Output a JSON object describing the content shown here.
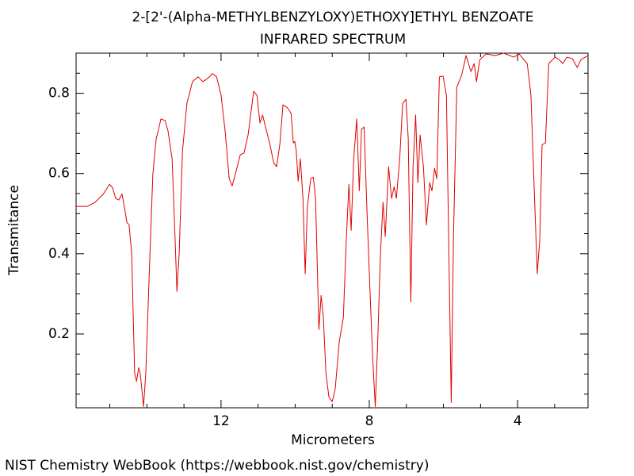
{
  "chart_data": {
    "type": "line",
    "title": "2-[2'-(Alpha-METHYLBENZYLOXY)ETHOXY]ETHYL BENZOATE",
    "subtitle": "INFRARED SPECTRUM",
    "xlabel": "Micrometers",
    "ylabel": "Transmitance",
    "footer": "NIST Chemistry WebBook (https://webbook.nist.gov/chemistry)",
    "xlim": [
      15.91,
      2.1
    ],
    "ylim": [
      0.016,
      0.9
    ],
    "xticks": [
      12,
      8,
      4
    ],
    "xminor_ticks": [
      15,
      14,
      13,
      11,
      10,
      9,
      7,
      6,
      5,
      3
    ],
    "yticks": [
      0.2,
      0.4,
      0.6,
      0.8
    ],
    "yminor_ticks": [
      0.05,
      0.1,
      0.15,
      0.25,
      0.3,
      0.35,
      0.45,
      0.5,
      0.55,
      0.65,
      0.7,
      0.75,
      0.85
    ],
    "series": [
      {
        "color": "#e00000",
        "x": [
          15.91,
          15.61,
          15.4,
          15.18,
          15.01,
          14.93,
          14.84,
          14.76,
          14.67,
          14.61,
          14.54,
          14.48,
          14.41,
          14.33,
          14.28,
          14.22,
          14.18,
          14.09,
          14.03,
          13.94,
          13.84,
          13.75,
          13.62,
          13.51,
          13.43,
          13.32,
          13.24,
          13.19,
          13.13,
          13.04,
          12.92,
          12.77,
          12.62,
          12.49,
          12.36,
          12.23,
          12.12,
          12.0,
          11.89,
          11.78,
          11.7,
          11.59,
          11.48,
          11.38,
          11.27,
          11.12,
          11.03,
          10.95,
          10.88,
          10.8,
          10.69,
          10.58,
          10.5,
          10.41,
          10.33,
          10.22,
          10.11,
          10.05,
          10.01,
          9.97,
          9.92,
          9.86,
          9.79,
          9.73,
          9.67,
          9.58,
          9.51,
          9.45,
          9.36,
          9.3,
          9.24,
          9.17,
          9.09,
          9.0,
          8.92,
          8.81,
          8.7,
          8.62,
          8.55,
          8.49,
          8.42,
          8.34,
          8.27,
          8.21,
          8.14,
          8.06,
          7.97,
          7.91,
          7.84,
          7.78,
          7.7,
          7.63,
          7.57,
          7.48,
          7.4,
          7.33,
          7.27,
          7.18,
          7.1,
          7.01,
          6.95,
          6.88,
          6.82,
          6.75,
          6.69,
          6.63,
          6.54,
          6.46,
          6.37,
          6.31,
          6.24,
          6.18,
          6.11,
          6.01,
          5.92,
          5.86,
          5.79,
          5.73,
          5.64,
          5.51,
          5.39,
          5.26,
          5.17,
          5.11,
          5.02,
          4.85,
          4.6,
          4.38,
          4.1,
          3.96,
          3.74,
          3.64,
          3.55,
          3.47,
          3.4,
          3.34,
          3.25,
          3.16,
          2.99,
          2.88,
          2.78,
          2.67,
          2.52,
          2.39,
          2.29,
          2.1
        ],
        "values": [
          0.518,
          0.518,
          0.528,
          0.548,
          0.573,
          0.565,
          0.538,
          0.534,
          0.549,
          0.518,
          0.478,
          0.472,
          0.399,
          0.102,
          0.082,
          0.116,
          0.102,
          0.019,
          0.102,
          0.34,
          0.597,
          0.686,
          0.736,
          0.732,
          0.706,
          0.637,
          0.439,
          0.306,
          0.399,
          0.656,
          0.775,
          0.829,
          0.841,
          0.829,
          0.837,
          0.849,
          0.841,
          0.796,
          0.706,
          0.587,
          0.569,
          0.607,
          0.647,
          0.651,
          0.696,
          0.805,
          0.795,
          0.726,
          0.746,
          0.716,
          0.676,
          0.627,
          0.617,
          0.676,
          0.771,
          0.765,
          0.75,
          0.676,
          0.68,
          0.656,
          0.581,
          0.637,
          0.538,
          0.35,
          0.518,
          0.587,
          0.591,
          0.538,
          0.211,
          0.296,
          0.241,
          0.102,
          0.043,
          0.031,
          0.063,
          0.181,
          0.241,
          0.439,
          0.573,
          0.458,
          0.637,
          0.736,
          0.557,
          0.71,
          0.716,
          0.498,
          0.28,
          0.142,
          0.019,
          0.162,
          0.399,
          0.528,
          0.443,
          0.617,
          0.538,
          0.567,
          0.538,
          0.637,
          0.775,
          0.785,
          0.686,
          0.28,
          0.617,
          0.746,
          0.577,
          0.696,
          0.617,
          0.472,
          0.577,
          0.557,
          0.613,
          0.587,
          0.841,
          0.843,
          0.795,
          0.439,
          0.029,
          0.439,
          0.815,
          0.845,
          0.894,
          0.854,
          0.874,
          0.829,
          0.884,
          0.898,
          0.894,
          0.9,
          0.89,
          0.898,
          0.874,
          0.795,
          0.557,
          0.35,
          0.439,
          0.672,
          0.676,
          0.874,
          0.89,
          0.884,
          0.874,
          0.89,
          0.886,
          0.864,
          0.884,
          0.894
        ]
      }
    ]
  }
}
